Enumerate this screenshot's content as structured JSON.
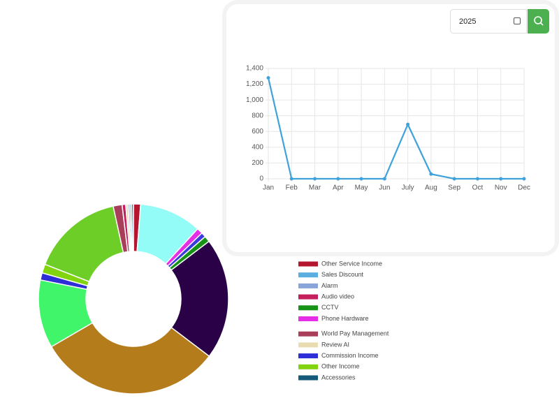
{
  "date_input": {
    "value": "2025"
  },
  "chart_data": [
    {
      "type": "line",
      "categories": [
        "Jan",
        "Feb",
        "Mar",
        "Apr",
        "May",
        "Jun",
        "July",
        "Aug",
        "Sep",
        "Oct",
        "Nov",
        "Dec"
      ],
      "values": [
        1280,
        0,
        0,
        0,
        0,
        0,
        690,
        60,
        0,
        0,
        0,
        0
      ],
      "color": "#3fa2db",
      "ylim": [
        0,
        1400
      ],
      "yticks": [
        0,
        200,
        400,
        600,
        800,
        {
          "value": 1000,
          "label": "1,000"
        },
        {
          "value": 1200,
          "label": "1,200"
        },
        {
          "value": 1400,
          "label": "1,400"
        }
      ],
      "grid": true
    },
    {
      "type": "doughnut",
      "values": [
        1.2,
        10.5,
        1.0,
        0.8,
        1.0,
        20.5,
        31.0,
        11.5,
        1.2,
        1.5,
        15.5,
        1.5,
        0.6,
        0.4,
        0.3,
        0.3,
        0.3
      ],
      "colors": [
        "#b5162f",
        "#94fcf6",
        "#e62ee6",
        "#3a3adf",
        "#169316",
        "#2a0046",
        "#b57c1c",
        "#40f56a",
        "#2e2ed8",
        "#82d40f",
        "#6dce27",
        "#a83e5a",
        "#c41e5c",
        "#e8dcb0",
        "#88a4d8",
        "#5aaee0",
        "#165c7a"
      ]
    }
  ],
  "legend": [
    {
      "name": "Other Service Income",
      "color": "#b5162f"
    },
    {
      "name": "Sales Discount",
      "color": "#5aaee0"
    },
    {
      "name": "Alarm",
      "color": "#88a4d8"
    },
    {
      "name": "Audio video",
      "color": "#c41e5c"
    },
    {
      "name": "CCTV",
      "color": "#169316"
    },
    {
      "name": "Phone Hardware",
      "color": "#e62ee6"
    },
    {
      "name": "World Pay Management",
      "color": "#a83e5a"
    },
    {
      "name": "Review AI",
      "color": "#e8dcb0"
    },
    {
      "name": "Commission Income",
      "color": "#2e2ed8"
    },
    {
      "name": "Other Income",
      "color": "#82d40f"
    },
    {
      "name": "Accessories",
      "color": "#165c7a"
    }
  ]
}
